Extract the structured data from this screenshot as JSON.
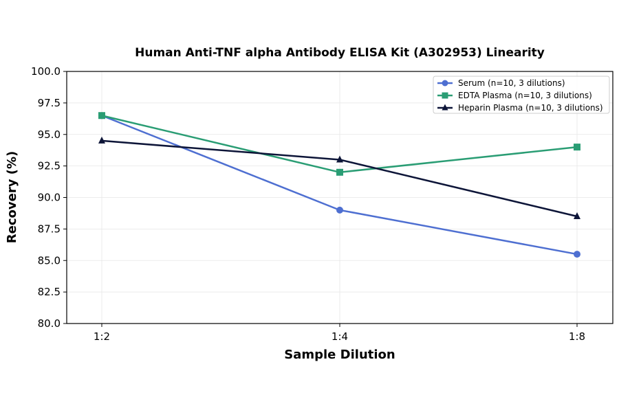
{
  "chart_data": {
    "type": "line",
    "title": "Human Anti-TNF alpha Antibody ELISA Kit (A302953) Linearity",
    "xlabel": "Sample Dilution",
    "ylabel": "Recovery (%)",
    "categories": [
      "1:2",
      "1:4",
      "1:8"
    ],
    "ylim": [
      80.0,
      100.0
    ],
    "yticks": [
      "80.0",
      "82.5",
      "85.0",
      "87.5",
      "90.0",
      "92.5",
      "95.0",
      "97.5",
      "100.0"
    ],
    "grid": true,
    "legend_position": "top-right",
    "series": [
      {
        "name": "Serum (n=10, 3 dilutions)",
        "values": [
          96.5,
          89.0,
          85.5
        ],
        "color": "#4e6fd1",
        "marker": "circle"
      },
      {
        "name": "EDTA Plasma (n=10, 3 dilutions)",
        "values": [
          96.5,
          92.0,
          94.0
        ],
        "color": "#2a9d74",
        "marker": "square"
      },
      {
        "name": "Heparin Plasma (n=10, 3 dilutions)",
        "values": [
          94.5,
          93.0,
          88.5
        ],
        "color": "#0d1538",
        "marker": "triangle"
      }
    ]
  }
}
